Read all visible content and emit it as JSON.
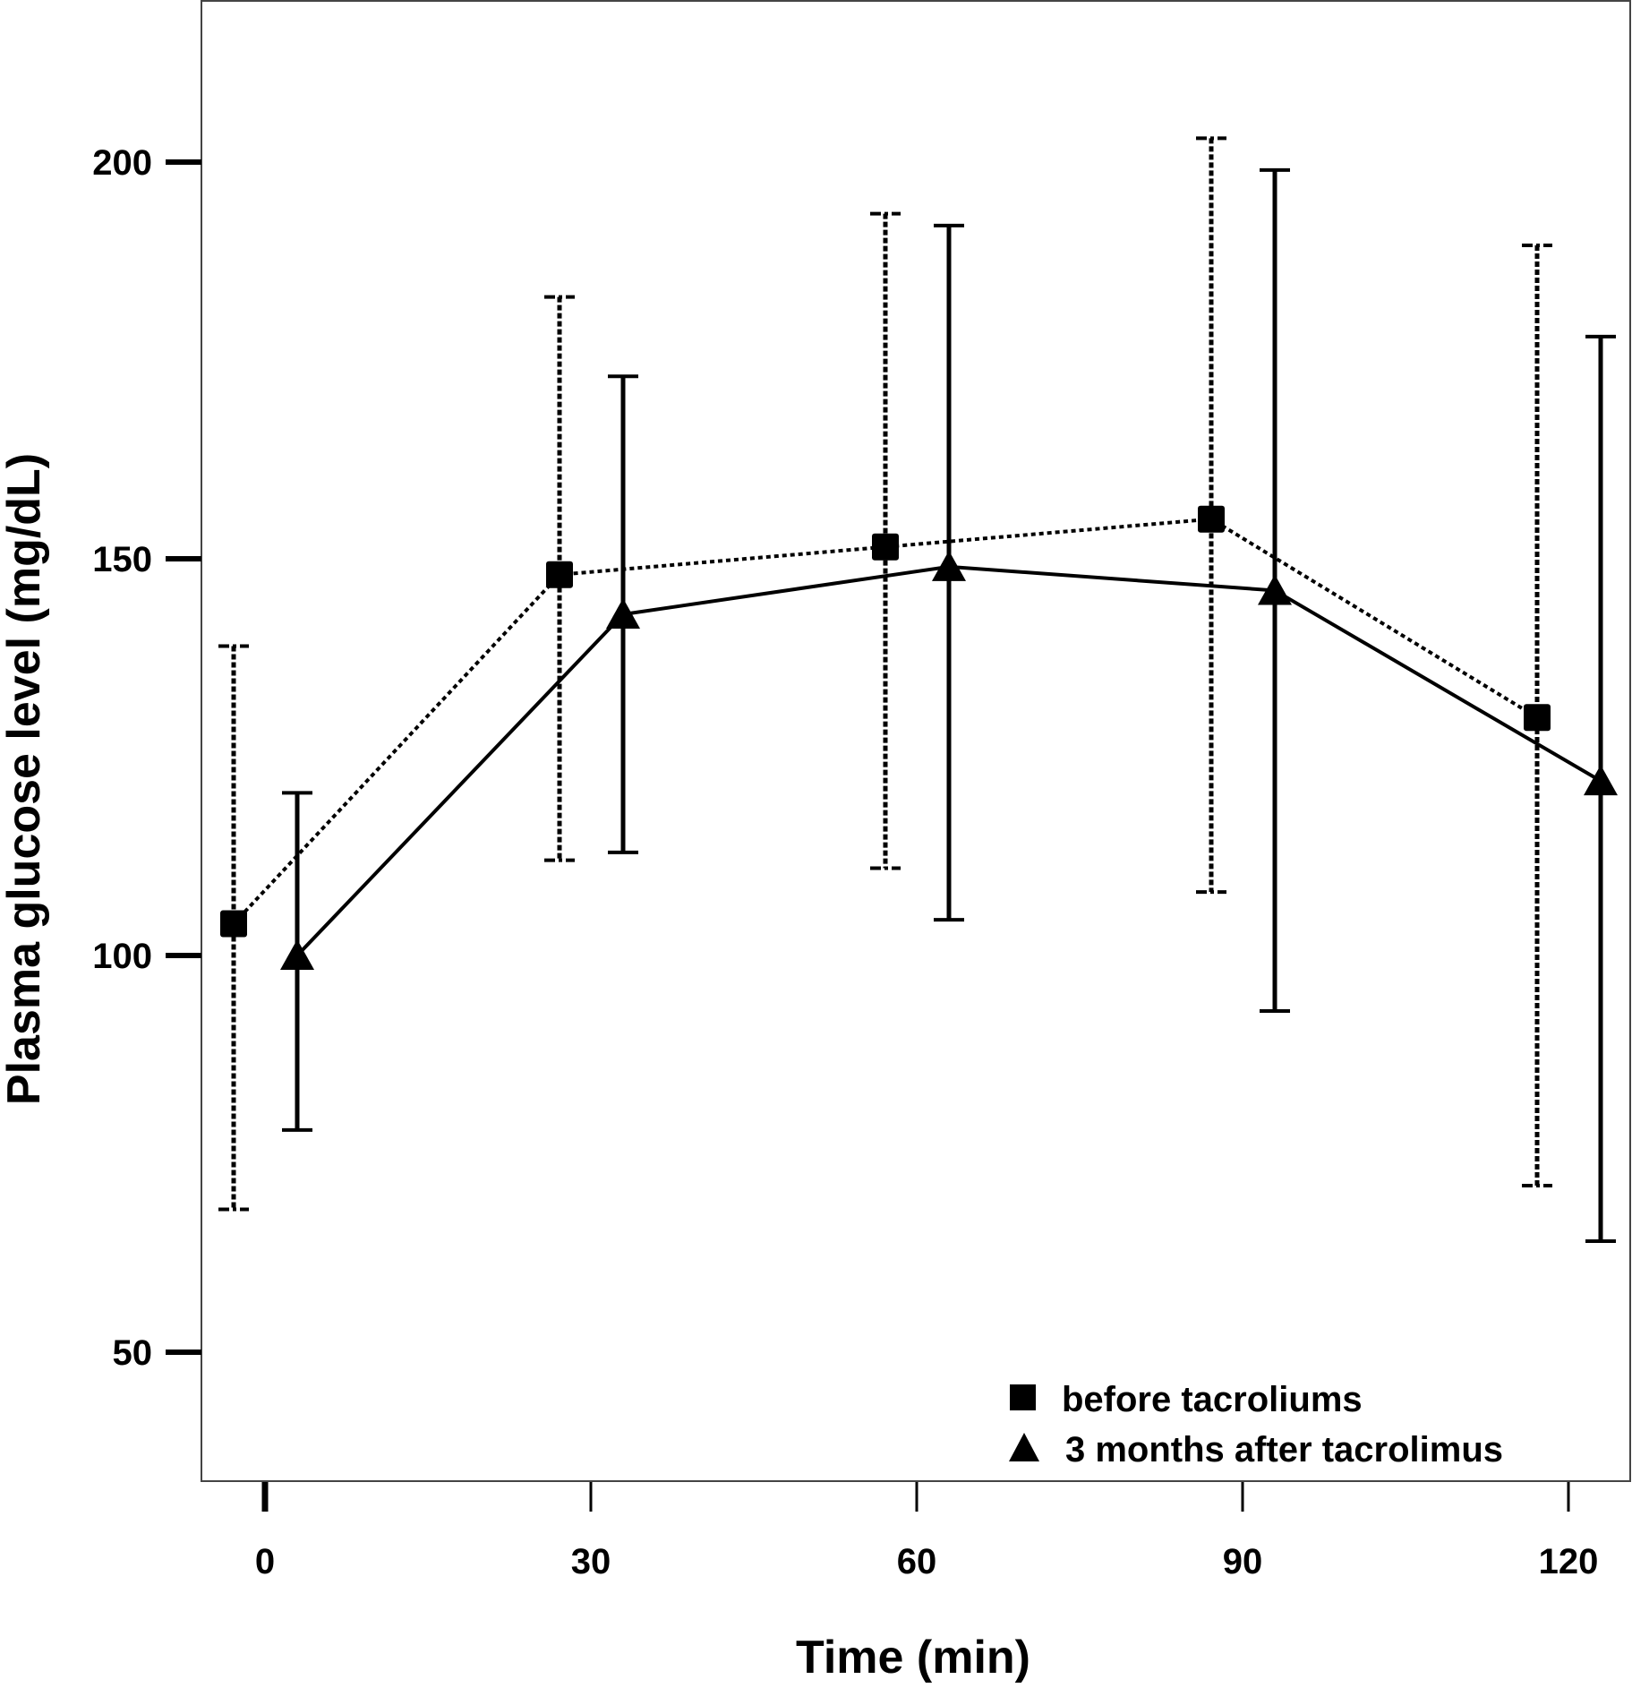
{
  "chart_data": {
    "type": "line",
    "title": "",
    "xlabel": "Time (min)",
    "ylabel": "Plasma glucose level (mg/dL)",
    "x_ticks": [
      "0",
      "30",
      "60",
      "90",
      "120"
    ],
    "y_ticks": [
      "50",
      "100",
      "150",
      "200"
    ],
    "x": [
      0,
      30,
      60,
      90,
      120
    ],
    "ylim": [
      34,
      220
    ],
    "xlim": [
      -5,
      125
    ],
    "grid": false,
    "legend_position": "bottom-right",
    "series": [
      {
        "name": "before tacroliums",
        "marker": "square",
        "line_style": "dotted",
        "values": [
          104,
          148,
          151.5,
          155,
          130
        ],
        "error_upper": [
          139,
          183,
          193.5,
          203,
          189.5
        ],
        "error_lower": [
          68,
          112,
          111,
          108,
          71
        ]
      },
      {
        "name": "3 months after tacrolimus",
        "marker": "triangle",
        "line_style": "solid",
        "values": [
          100,
          143,
          149,
          146,
          122
        ],
        "error_upper": [
          120.5,
          173,
          192,
          199,
          178
        ],
        "error_lower": [
          78,
          113,
          104.5,
          93,
          64
        ]
      }
    ]
  }
}
